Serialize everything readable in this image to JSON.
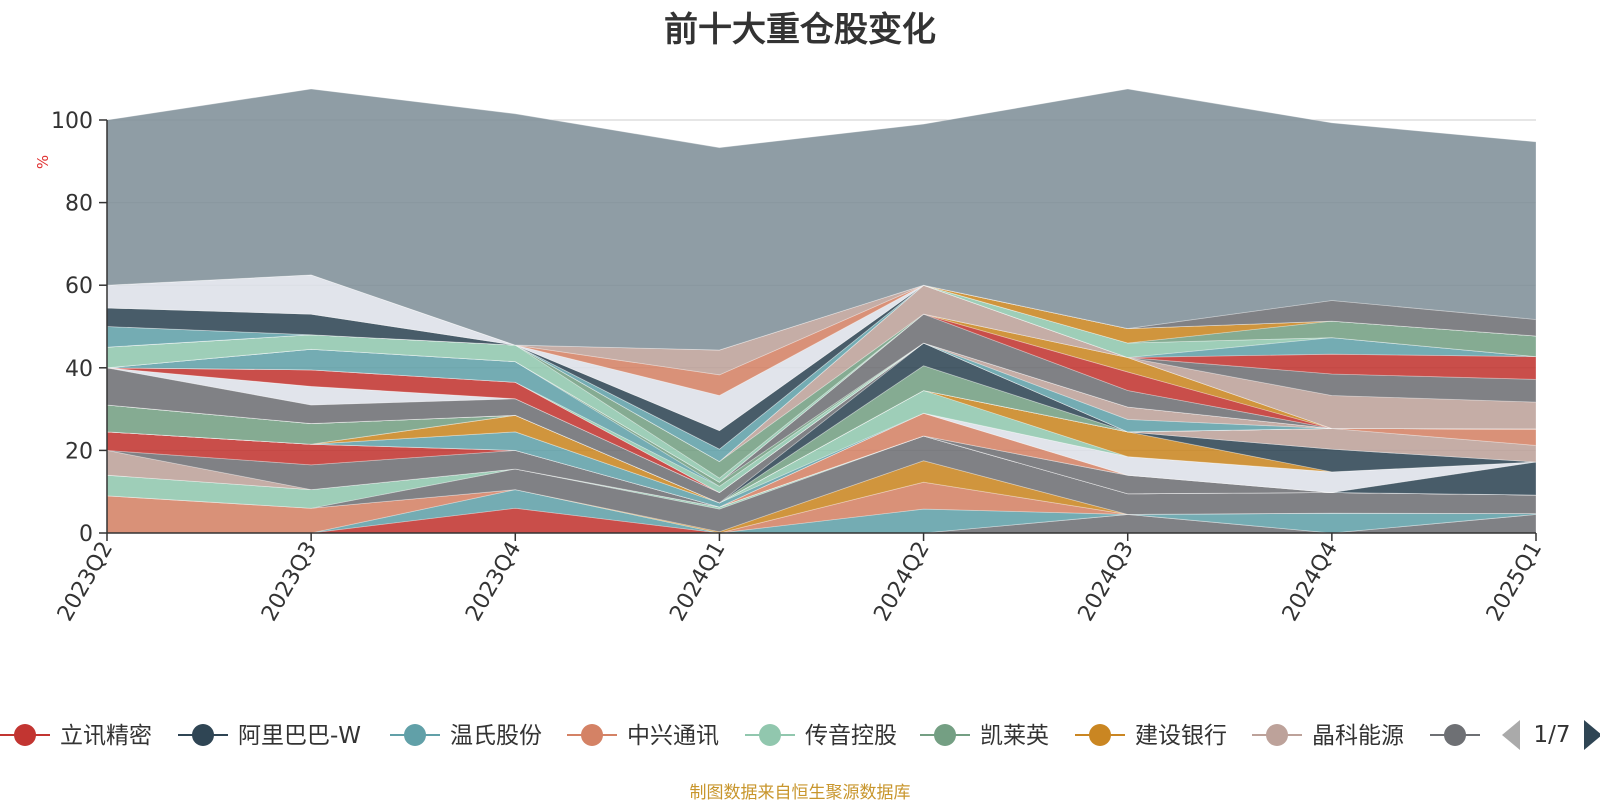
{
  "title": "前十大重仓股变化",
  "source_note": "制图数据来自恒生聚源数据库",
  "legend_page": "1/7",
  "chart_data": {
    "type": "area",
    "stacked": true,
    "title": "前十大重仓股变化",
    "ylabel": "%",
    "ylim": [
      0,
      100
    ],
    "yticks": [
      0,
      20,
      40,
      60,
      80,
      100
    ],
    "grid": true,
    "legend_position": "bottom",
    "categories": [
      "2023Q2",
      "2023Q3",
      "2023Q4",
      "2024Q1",
      "2024Q2",
      "2024Q3",
      "2024Q4",
      "2025Q1"
    ],
    "legend": [
      {
        "name": "立讯精密",
        "color": "#c23531"
      },
      {
        "name": "阿里巴巴-W",
        "color": "#2f4554"
      },
      {
        "name": "温氏股份",
        "color": "#61a0a8"
      },
      {
        "name": "中兴通讯",
        "color": "#d48265"
      },
      {
        "name": "传音控股",
        "color": "#91c7ae"
      },
      {
        "name": "凯莱英",
        "color": "#749f83"
      },
      {
        "name": "建设银行",
        "color": "#ca8622"
      },
      {
        "name": "晶科能源",
        "color": "#bda29a"
      },
      {
        "name": "",
        "color": "#6e7074"
      }
    ],
    "layers": [
      {
        "color": "#6e7074",
        "values": [
          0,
          0,
          0,
          0,
          0,
          4.5,
          0,
          4.5
        ]
      },
      {
        "color": "#c23531",
        "values": [
          0,
          0,
          6,
          0,
          0,
          0,
          0,
          0
        ]
      },
      {
        "color": "#61a0a8",
        "values": [
          0,
          0,
          4.5,
          0,
          5.8,
          0,
          4.8,
          0.2
        ]
      },
      {
        "color": "#d48265",
        "values": [
          9,
          6,
          0,
          0,
          6.5,
          0,
          0,
          0
        ]
      },
      {
        "color": "#ca8622",
        "values": [
          0,
          0,
          0,
          0.3,
          5.2,
          0,
          0,
          0
        ]
      },
      {
        "color": "#6e7074",
        "values": [
          0,
          0,
          5,
          5.5,
          6,
          5,
          5,
          4.5
        ]
      },
      {
        "color": "#91c7ae",
        "values": [
          5,
          4.5,
          0,
          0.5,
          0,
          0,
          0,
          0
        ]
      },
      {
        "color": "#749f83",
        "values": [
          0,
          0,
          0,
          0,
          0,
          0,
          0,
          0
        ]
      },
      {
        "color": "#d48265",
        "values": [
          0,
          0,
          0,
          0,
          0,
          0,
          0,
          0
        ]
      },
      {
        "color": "#bda29a",
        "values": [
          6,
          0,
          0,
          0,
          0,
          0,
          0,
          0
        ]
      },
      {
        "color": "#6e7074",
        "values": [
          0,
          6,
          4.5,
          0,
          0,
          4.5,
          0,
          0
        ]
      },
      {
        "color": "#c23531",
        "values": [
          4.5,
          5,
          0,
          0,
          0,
          0,
          0,
          0
        ]
      },
      {
        "color": "#d48265",
        "values": [
          0,
          0,
          0,
          0,
          5.5,
          0,
          0,
          0
        ]
      },
      {
        "color": "#2f4554",
        "values": [
          0,
          0,
          0,
          0,
          0,
          0,
          0,
          8
        ]
      },
      {
        "color": "#dde0e8",
        "values": [
          0,
          0,
          0,
          0,
          0,
          4.5,
          5,
          0
        ]
      },
      {
        "color": "#61a0a8",
        "values": [
          0,
          0,
          4.5,
          1,
          0,
          0,
          0,
          0
        ]
      },
      {
        "color": "#91c7ae",
        "values": [
          0,
          0,
          0,
          0,
          5.5,
          0,
          0,
          0
        ]
      },
      {
        "color": "#ca8622",
        "values": [
          0,
          0,
          4,
          0,
          0,
          6,
          0,
          0
        ]
      },
      {
        "color": "#2f4554",
        "values": [
          0,
          0,
          0,
          0,
          0,
          0,
          5.5,
          0
        ]
      },
      {
        "color": "#749f83",
        "values": [
          6.5,
          5,
          0,
          0,
          0,
          0,
          0,
          0
        ]
      },
      {
        "color": "#bda29a",
        "values": [
          0,
          0,
          0,
          0,
          0,
          0,
          5,
          4
        ]
      },
      {
        "color": "#d48265",
        "values": [
          0,
          0,
          0,
          0,
          0,
          0,
          0,
          4
        ]
      },
      {
        "color": "#ca8622",
        "values": [
          0,
          0,
          0,
          0,
          0,
          0,
          0,
          0
        ]
      },
      {
        "color": "#749f83",
        "values": [
          0,
          0,
          0,
          0,
          6,
          0,
          0,
          0
        ]
      },
      {
        "color": "#2f4554",
        "values": [
          0,
          0,
          0,
          0,
          5.5,
          0,
          0,
          0
        ]
      },
      {
        "color": "#6e7074",
        "values": [
          9,
          4.5,
          4,
          2.5,
          0,
          0,
          0,
          0
        ]
      },
      {
        "color": "#dde0e8",
        "values": [
          0,
          4.5,
          0,
          0,
          0,
          0,
          0,
          0
        ]
      },
      {
        "color": "#6e7074",
        "values": [
          0,
          0,
          0,
          0,
          0,
          0,
          0,
          0
        ]
      },
      {
        "color": "#c23531",
        "values": [
          0,
          4,
          4,
          0,
          0,
          0,
          0,
          0
        ]
      },
      {
        "color": "#61a0a8",
        "values": [
          0,
          0,
          0,
          0,
          0,
          3,
          0,
          0
        ]
      },
      {
        "color": "#bda29a",
        "values": [
          0,
          0,
          0,
          0,
          0,
          3,
          0,
          0
        ]
      },
      {
        "color": "#91c7ae",
        "values": [
          0,
          0,
          0,
          1.5,
          0,
          0,
          0,
          0
        ]
      },
      {
        "color": "#61a0a8",
        "values": [
          0,
          5,
          5,
          0,
          0,
          0,
          0,
          0
        ]
      },
      {
        "color": "#749f83",
        "values": [
          0,
          0,
          0,
          1,
          0,
          0,
          0,
          0
        ]
      },
      {
        "color": "#6e7074",
        "values": [
          0,
          0,
          0,
          0,
          7,
          4,
          0,
          0
        ]
      },
      {
        "color": "#c23531",
        "values": [
          0,
          0,
          0,
          0,
          0,
          4.5,
          0,
          0
        ]
      },
      {
        "color": "#ca8622",
        "values": [
          0,
          0,
          0,
          0,
          0,
          3.5,
          0,
          0
        ]
      },
      {
        "color": "#91c7ae",
        "values": [
          5,
          3.5,
          4,
          1,
          0,
          0,
          0,
          0
        ]
      },
      {
        "color": "#749f83",
        "values": [
          0,
          0,
          0,
          4,
          0,
          0,
          0,
          0
        ]
      },
      {
        "color": "#bda29a",
        "values": [
          0,
          0,
          0,
          0,
          7,
          0,
          8,
          6.5
        ]
      },
      {
        "color": "#6e7074",
        "values": [
          0,
          0,
          0,
          0,
          0,
          0,
          5.2,
          5.5
        ]
      },
      {
        "color": "#c23531",
        "values": [
          0,
          0,
          0,
          0,
          0,
          0,
          4.8,
          5.5
        ]
      },
      {
        "color": "#61a0a8",
        "values": [
          5,
          0,
          0,
          3,
          0,
          0,
          4,
          0
        ]
      },
      {
        "color": "#91c7ae",
        "values": [
          0,
          0,
          0,
          0,
          0,
          3.5,
          0,
          0
        ]
      },
      {
        "color": "#2f4554",
        "values": [
          4.5,
          5,
          0,
          4.5,
          0,
          0,
          0,
          0
        ]
      },
      {
        "color": "#749f83",
        "values": [
          0,
          0,
          0,
          0,
          0,
          0,
          4,
          5
        ]
      },
      {
        "color": "#ca8622",
        "values": [
          0,
          0,
          0,
          0,
          0,
          3.5,
          0,
          0
        ]
      },
      {
        "color": "#dde0e8",
        "values": [
          5.5,
          9.5,
          0,
          8.5,
          0,
          0,
          0,
          0
        ]
      },
      {
        "color": "#d48265",
        "values": [
          0,
          0,
          0,
          5,
          0,
          0,
          0,
          0
        ]
      },
      {
        "color": "#bda29a",
        "values": [
          0,
          0,
          0,
          6,
          0,
          0,
          0,
          0
        ]
      },
      {
        "color": "#6e7074",
        "values": [
          0,
          0,
          0,
          0,
          0,
          0,
          5,
          4
        ]
      },
      {
        "color": "#7f8f99",
        "values": [
          40,
          45,
          56,
          49,
          39,
          58,
          43,
          43
        ]
      }
    ]
  }
}
